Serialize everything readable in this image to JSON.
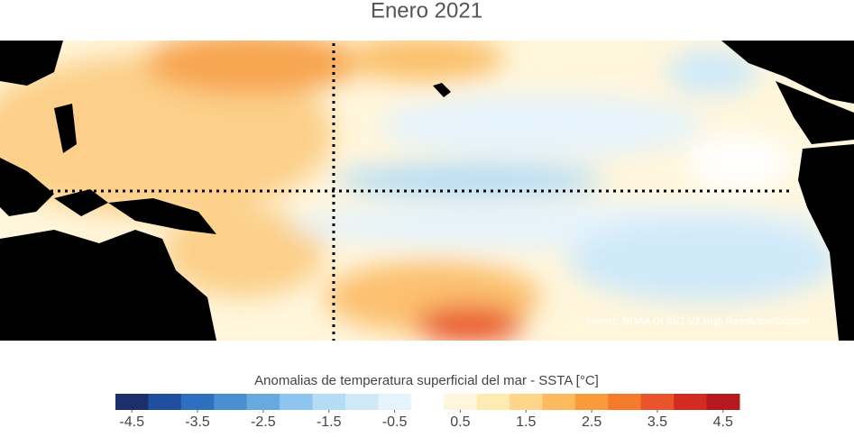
{
  "chart_data": {
    "type": "map",
    "title": "Enero 2021",
    "source": "Fuente: NOAA OI SST V2 High Resolution Dataset",
    "colorbar": {
      "label": "Anomalias de temperatura superficial del mar - SSTA  [°C]",
      "lim": [
        -4.75,
        4.75
      ],
      "ticks": [
        -4.5,
        -3.5,
        -2.5,
        -1.5,
        -0.5,
        0.5,
        1.5,
        2.5,
        3.5,
        4.5
      ],
      "colors": [
        "#1b2f6a",
        "#1f4f9d",
        "#2e6fbf",
        "#4a8fd3",
        "#68aae0",
        "#8ec5ee",
        "#b4dcf6",
        "#cfe9f9",
        "#e5f3fb",
        "#ffffff",
        "#fff7dc",
        "#ffeab2",
        "#fed58a",
        "#fdba5f",
        "#f99b3b",
        "#f47b2b",
        "#e8552a",
        "#d22b21",
        "#b5191d"
      ]
    }
  }
}
